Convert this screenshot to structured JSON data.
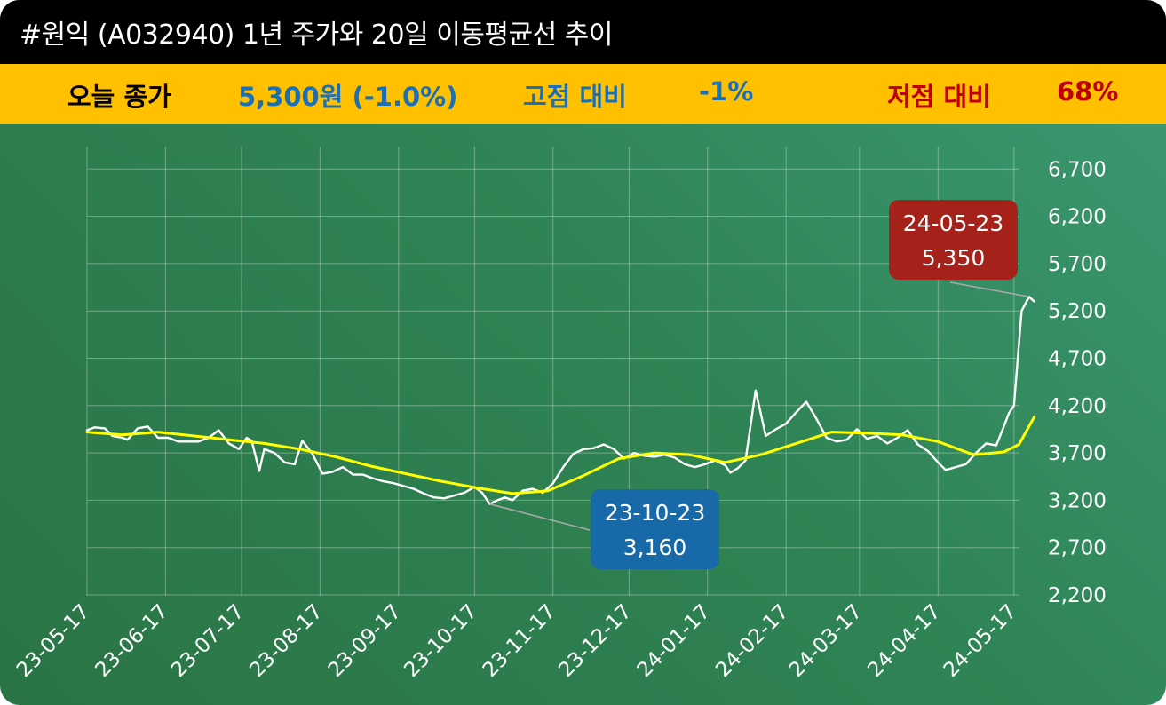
{
  "title": "#원익 (A032940) 1년 주가와 20일 이동평균선 추이",
  "info_bar": {
    "close_label": "오늘 종가",
    "close_value": "5,300원 (-1.0%)",
    "high_label": "고점 대비",
    "high_value": "-1%",
    "low_label": "저점 대비",
    "low_value": "68%"
  },
  "colors": {
    "title_bg": "#000000",
    "info_bg": "#ffc000",
    "label_dark": "#000000",
    "value_blue": "#1b6fb5",
    "low_red": "#c00000",
    "price_line": "#ffffff",
    "ma_line": "#ffff00",
    "high_callout": "#a5221b",
    "low_callout": "#1769a8"
  },
  "chart_data": {
    "type": "line",
    "x_ticks": [
      "23-05-17",
      "23-06-17",
      "23-07-17",
      "23-08-17",
      "23-09-17",
      "23-10-17",
      "23-11-17",
      "23-12-17",
      "24-01-17",
      "24-02-17",
      "24-03-17",
      "24-04-17",
      "24-05-17"
    ],
    "y_ticks": [
      "6,700",
      "6,200",
      "5,700",
      "5,200",
      "4,700",
      "4,200",
      "3,700",
      "3,200",
      "2,700",
      "2,200"
    ],
    "ylim": [
      2200,
      6700
    ],
    "grid": true,
    "series": [
      {
        "key": "price",
        "values": [
          [
            "23-05-17",
            3940
          ],
          [
            "23-05-20",
            3970
          ],
          [
            "23-05-24",
            3960
          ],
          [
            "23-05-27",
            3880
          ],
          [
            "23-05-31",
            3860
          ],
          [
            "23-06-02",
            3840
          ],
          [
            "23-06-06",
            3960
          ],
          [
            "23-06-10",
            3980
          ],
          [
            "23-06-14",
            3860
          ],
          [
            "23-06-18",
            3860
          ],
          [
            "23-06-22",
            3820
          ],
          [
            "23-06-26",
            3820
          ],
          [
            "23-06-30",
            3820
          ],
          [
            "23-07-04",
            3860
          ],
          [
            "23-07-08",
            3940
          ],
          [
            "23-07-12",
            3800
          ],
          [
            "23-07-16",
            3740
          ],
          [
            "23-07-19",
            3860
          ],
          [
            "23-07-21",
            3830
          ],
          [
            "23-07-24",
            3510
          ],
          [
            "23-07-26",
            3740
          ],
          [
            "23-07-30",
            3700
          ],
          [
            "23-08-03",
            3600
          ],
          [
            "23-08-07",
            3580
          ],
          [
            "23-08-10",
            3830
          ],
          [
            "23-08-14",
            3690
          ],
          [
            "23-08-18",
            3480
          ],
          [
            "23-08-22",
            3500
          ],
          [
            "23-08-26",
            3550
          ],
          [
            "23-08-30",
            3470
          ],
          [
            "23-09-03",
            3470
          ],
          [
            "23-09-07",
            3430
          ],
          [
            "23-09-11",
            3400
          ],
          [
            "23-09-15",
            3380
          ],
          [
            "23-09-19",
            3350
          ],
          [
            "23-09-23",
            3320
          ],
          [
            "23-09-27",
            3270
          ],
          [
            "23-10-01",
            3230
          ],
          [
            "23-10-05",
            3220
          ],
          [
            "23-10-09",
            3250
          ],
          [
            "23-10-13",
            3280
          ],
          [
            "23-10-17",
            3340
          ],
          [
            "23-10-20",
            3280
          ],
          [
            "23-10-23",
            3160
          ],
          [
            "23-10-26",
            3200
          ],
          [
            "23-10-29",
            3230
          ],
          [
            "23-11-01",
            3200
          ],
          [
            "23-11-05",
            3300
          ],
          [
            "23-11-09",
            3320
          ],
          [
            "23-11-13",
            3280
          ],
          [
            "23-11-17",
            3380
          ],
          [
            "23-11-21",
            3550
          ],
          [
            "23-11-25",
            3690
          ],
          [
            "23-11-29",
            3740
          ],
          [
            "23-12-03",
            3750
          ],
          [
            "23-12-07",
            3790
          ],
          [
            "23-12-11",
            3740
          ],
          [
            "23-12-15",
            3640
          ],
          [
            "23-12-19",
            3700
          ],
          [
            "23-12-23",
            3670
          ],
          [
            "23-12-27",
            3660
          ],
          [
            "23-12-31",
            3680
          ],
          [
            "24-01-04",
            3650
          ],
          [
            "24-01-08",
            3580
          ],
          [
            "24-01-12",
            3550
          ],
          [
            "24-01-16",
            3580
          ],
          [
            "24-01-20",
            3620
          ],
          [
            "24-01-24",
            3570
          ],
          [
            "24-01-26",
            3490
          ],
          [
            "24-01-29",
            3540
          ],
          [
            "24-02-01",
            3620
          ],
          [
            "24-02-05",
            4360
          ],
          [
            "24-02-09",
            3880
          ],
          [
            "24-02-13",
            3950
          ],
          [
            "24-02-17",
            4010
          ],
          [
            "24-02-21",
            4130
          ],
          [
            "24-02-25",
            4240
          ],
          [
            "24-02-29",
            4060
          ],
          [
            "24-03-04",
            3860
          ],
          [
            "24-03-08",
            3820
          ],
          [
            "24-03-12",
            3840
          ],
          [
            "24-03-16",
            3950
          ],
          [
            "24-03-20",
            3850
          ],
          [
            "24-03-24",
            3880
          ],
          [
            "24-03-28",
            3800
          ],
          [
            "24-04-01",
            3860
          ],
          [
            "24-04-05",
            3940
          ],
          [
            "24-04-09",
            3790
          ],
          [
            "24-04-13",
            3720
          ],
          [
            "24-04-17",
            3600
          ],
          [
            "24-04-20",
            3520
          ],
          [
            "24-04-24",
            3550
          ],
          [
            "24-04-28",
            3580
          ],
          [
            "24-05-02",
            3700
          ],
          [
            "24-05-06",
            3800
          ],
          [
            "24-05-10",
            3780
          ],
          [
            "24-05-13",
            3980
          ],
          [
            "24-05-15",
            4120
          ],
          [
            "24-05-17",
            4200
          ],
          [
            "24-05-20",
            5200
          ],
          [
            "24-05-23",
            5350
          ],
          [
            "24-05-25",
            5300
          ]
        ]
      },
      {
        "key": "ma20",
        "values": [
          [
            "23-05-17",
            3920
          ],
          [
            "23-05-31",
            3890
          ],
          [
            "23-06-14",
            3920
          ],
          [
            "23-06-28",
            3880
          ],
          [
            "23-07-12",
            3840
          ],
          [
            "23-07-26",
            3800
          ],
          [
            "23-08-09",
            3740
          ],
          [
            "23-08-23",
            3660
          ],
          [
            "23-09-06",
            3560
          ],
          [
            "23-09-20",
            3480
          ],
          [
            "23-10-04",
            3400
          ],
          [
            "23-10-18",
            3330
          ],
          [
            "23-11-01",
            3270
          ],
          [
            "23-11-15",
            3300
          ],
          [
            "23-11-29",
            3460
          ],
          [
            "23-12-13",
            3640
          ],
          [
            "23-12-27",
            3700
          ],
          [
            "24-01-10",
            3680
          ],
          [
            "24-01-24",
            3600
          ],
          [
            "24-02-07",
            3680
          ],
          [
            "24-02-21",
            3800
          ],
          [
            "24-03-06",
            3920
          ],
          [
            "24-03-20",
            3910
          ],
          [
            "24-04-03",
            3890
          ],
          [
            "24-04-17",
            3820
          ],
          [
            "24-05-01",
            3680
          ],
          [
            "24-05-13",
            3710
          ],
          [
            "24-05-19",
            3790
          ],
          [
            "24-05-25",
            4080
          ]
        ]
      }
    ],
    "annotations": [
      {
        "kind": "high",
        "date": "24-05-23",
        "value": 5350,
        "date_label": "24-05-23",
        "value_label": "5,350"
      },
      {
        "kind": "low",
        "date": "23-10-23",
        "value": 3160,
        "date_label": "23-10-23",
        "value_label": "3,160"
      }
    ]
  }
}
